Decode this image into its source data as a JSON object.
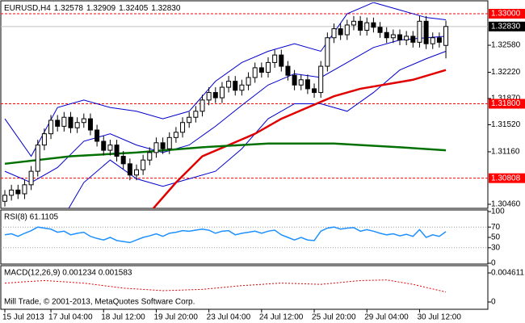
{
  "chart_data": [
    {
      "type": "candlestick",
      "title": "EURUSD,H4",
      "header_values": [
        "1.32578",
        "1.32909",
        "1.32405",
        "1.32830"
      ],
      "categories": [
        "15 Jul 2013",
        null,
        null,
        null,
        null,
        null,
        null,
        "17 Jul 04:00",
        null,
        null,
        null,
        null,
        null,
        null,
        null,
        "18 Jul 12:00",
        null,
        null,
        null,
        null,
        null,
        null,
        null,
        "19 Jul 20:00",
        null,
        null,
        null,
        null,
        null,
        null,
        null,
        "23 Jul 04:00",
        null,
        null,
        null,
        null,
        null,
        null,
        null,
        "24 Jul 12:00",
        null,
        null,
        null,
        null,
        null,
        null,
        null,
        "25 Jul 20:00",
        null,
        null,
        null,
        null,
        null,
        null,
        null,
        "29 Jul 04:00",
        null,
        null,
        null,
        null,
        null,
        null,
        null,
        "30 Jul 12:00",
        null,
        null,
        null,
        null
      ],
      "open": [
        1.305,
        1.3058,
        1.3065,
        1.306,
        1.3072,
        1.309,
        1.3125,
        1.314,
        1.3158,
        1.315,
        1.3162,
        1.3148,
        1.3155,
        1.316,
        1.3145,
        1.313,
        1.3118,
        1.3125,
        1.311,
        1.31,
        1.3085,
        1.3092,
        1.3105,
        1.3115,
        1.3128,
        1.312,
        1.3135,
        1.3142,
        1.3155,
        1.3162,
        1.317,
        1.3185,
        1.3195,
        1.3188,
        1.3202,
        1.321,
        1.3198,
        1.3205,
        1.3215,
        1.3228,
        1.3222,
        1.3235,
        1.3245,
        1.323,
        1.3218,
        1.3205,
        1.3212,
        1.32,
        1.3195,
        1.323,
        1.3268,
        1.328,
        1.3272,
        1.3285,
        1.329,
        1.3278,
        1.3288,
        1.3282,
        1.3275,
        1.3268,
        1.3272,
        1.3265,
        1.327,
        1.3262,
        1.329,
        1.326,
        1.3268,
        1.32578
      ],
      "high": [
        1.3065,
        1.3072,
        1.3072,
        1.3079,
        1.3097,
        1.3132,
        1.3147,
        1.3165,
        1.3165,
        1.3169,
        1.3169,
        1.3162,
        1.3167,
        1.3167,
        1.3152,
        1.3137,
        1.3132,
        1.3132,
        1.3117,
        1.3107,
        1.3099,
        1.3112,
        1.3122,
        1.3135,
        1.3135,
        1.3142,
        1.3149,
        1.3162,
        1.3169,
        1.3177,
        1.3192,
        1.3202,
        1.3202,
        1.3209,
        1.3217,
        1.3217,
        1.3212,
        1.3222,
        1.3235,
        1.3235,
        1.3242,
        1.3252,
        1.3252,
        1.3237,
        1.3225,
        1.3219,
        1.3219,
        1.3207,
        1.3237,
        1.3275,
        1.3287,
        1.3287,
        1.3292,
        1.3297,
        1.3297,
        1.3295,
        1.3295,
        1.3289,
        1.3282,
        1.3279,
        1.3279,
        1.3277,
        1.3277,
        1.3297,
        1.3297,
        1.3275,
        1.3275,
        1.32909
      ],
      "low": [
        1.3043,
        1.3051,
        1.3053,
        1.3053,
        1.3065,
        1.3083,
        1.3118,
        1.3133,
        1.3143,
        1.3143,
        1.3141,
        1.3141,
        1.3148,
        1.3138,
        1.3123,
        1.3111,
        1.3111,
        1.3103,
        1.3093,
        1.3078,
        1.3078,
        1.3085,
        1.3098,
        1.3108,
        1.3113,
        1.3113,
        1.3128,
        1.3135,
        1.3148,
        1.3155,
        1.3163,
        1.3178,
        1.3181,
        1.3181,
        1.3195,
        1.3191,
        1.3191,
        1.3198,
        1.3208,
        1.3215,
        1.3215,
        1.3228,
        1.3223,
        1.3211,
        1.3198,
        1.3198,
        1.3193,
        1.3188,
        1.3188,
        1.3223,
        1.3261,
        1.3265,
        1.3265,
        1.3278,
        1.3271,
        1.3271,
        1.3275,
        1.3268,
        1.3261,
        1.3261,
        1.3258,
        1.3258,
        1.3255,
        1.3255,
        1.3253,
        1.3253,
        1.3255,
        1.32405
      ],
      "close": [
        1.3058,
        1.3065,
        1.306,
        1.3072,
        1.309,
        1.3125,
        1.314,
        1.3158,
        1.315,
        1.3162,
        1.3148,
        1.3155,
        1.316,
        1.3145,
        1.313,
        1.3118,
        1.3125,
        1.311,
        1.31,
        1.3085,
        1.3092,
        1.3105,
        1.3115,
        1.3128,
        1.312,
        1.3135,
        1.3142,
        1.3155,
        1.3162,
        1.317,
        1.3185,
        1.3195,
        1.3188,
        1.3202,
        1.321,
        1.3198,
        1.3205,
        1.3215,
        1.3228,
        1.3222,
        1.3235,
        1.3245,
        1.323,
        1.3218,
        1.3205,
        1.3212,
        1.32,
        1.3195,
        1.323,
        1.3268,
        1.328,
        1.3272,
        1.3285,
        1.329,
        1.3278,
        1.3288,
        1.3282,
        1.3275,
        1.3268,
        1.3272,
        1.3265,
        1.327,
        1.3262,
        1.329,
        1.326,
        1.3268,
        1.3262,
        1.3283
      ],
      "ylim": [
        1.30406,
        1.33151
      ],
      "yticks": [
        {
          "value": 1.3258,
          "label": "1.32580"
        },
        {
          "value": 1.3222,
          "label": "1.32220"
        },
        {
          "value": 1.3187,
          "label": "1.31870"
        },
        {
          "value": 1.3152,
          "label": "1.31520"
        },
        {
          "value": 1.3116,
          "label": "1.31160"
        },
        {
          "value": 1.3046,
          "label": "1.30460"
        }
      ],
      "levels": [
        {
          "value": 1.33,
          "label": "1.33000"
        },
        {
          "value": 1.318,
          "label": "1.31800"
        },
        {
          "value": 1.30808,
          "label": "1.30808"
        }
      ],
      "level_color": "#ff0000",
      "current": {
        "value": 1.3283,
        "label": "1.32830"
      },
      "bands": {
        "color": "#0000cd",
        "x": [
          0,
          4,
          8,
          12,
          16,
          20,
          24,
          28,
          32,
          36,
          40,
          44,
          48,
          52,
          56,
          60,
          64,
          67
        ],
        "upper": [
          1.316,
          1.311,
          1.3175,
          1.3185,
          1.3175,
          1.317,
          1.316,
          1.317,
          1.321,
          1.3235,
          1.325,
          1.326,
          1.325,
          1.33,
          1.3315,
          1.3305,
          1.3295,
          1.3292
        ],
        "middle": [
          1.309,
          1.3075,
          1.3095,
          1.313,
          1.314,
          1.3125,
          1.3115,
          1.3125,
          1.315,
          1.3178,
          1.3205,
          1.322,
          1.3215,
          1.3235,
          1.3255,
          1.3265,
          1.3268,
          1.327
        ],
        "lower": [
          1.303,
          1.304,
          1.3015,
          1.3075,
          1.3105,
          1.308,
          1.307,
          1.308,
          1.309,
          1.312,
          1.316,
          1.318,
          1.318,
          1.317,
          1.3195,
          1.3225,
          1.324,
          1.325
        ]
      },
      "ma_lines": [
        {
          "color": "#e00000",
          "x": [
            22,
            26,
            30,
            34,
            38,
            42,
            46,
            50,
            54,
            58,
            62,
            67
          ],
          "values": [
            1.3035,
            1.3075,
            1.311,
            1.3125,
            1.314,
            1.316,
            1.3175,
            1.319,
            1.32,
            1.3206,
            1.3212,
            1.3225
          ]
        },
        {
          "color": "#007000",
          "x": [
            0,
            10,
            20,
            30,
            40,
            50,
            60,
            67
          ],
          "values": [
            1.31,
            1.311,
            1.3115,
            1.3122,
            1.3127,
            1.3127,
            1.3122,
            1.3118
          ]
        }
      ]
    },
    {
      "type": "line",
      "title": "RSI(8) 61.1105",
      "color": "#1e90ff",
      "values": [
        55,
        57,
        52,
        58,
        63,
        70,
        68,
        66,
        60,
        62,
        55,
        58,
        60,
        52,
        48,
        45,
        50,
        44,
        42,
        40,
        45,
        50,
        53,
        57,
        52,
        58,
        60,
        63,
        62,
        64,
        66,
        64,
        58,
        62,
        63,
        55,
        58,
        60,
        62,
        58,
        62,
        64,
        55,
        50,
        45,
        50,
        45,
        44,
        62,
        68,
        70,
        66,
        68,
        69,
        62,
        65,
        62,
        58,
        55,
        57,
        53,
        56,
        52,
        65,
        50,
        55,
        52,
        61.1105
      ],
      "ylim": [
        0,
        100
      ],
      "yticks": [
        0,
        30,
        50,
        70,
        100
      ],
      "levels": [
        30,
        70
      ]
    },
    {
      "type": "line",
      "title": "MACD(12,26,9) 0.001234 0.001583",
      "color": "#e00000",
      "dashed": true,
      "x": [
        0,
        6,
        12,
        18,
        24,
        30,
        36,
        42,
        48,
        54,
        58,
        62,
        67
      ],
      "values": [
        0.003,
        0.0034,
        0.003,
        0.0022,
        0.0018,
        0.002,
        0.0026,
        0.003,
        0.0028,
        0.0034,
        0.0035,
        0.0028,
        0.001583
      ],
      "ylim": [
        -0.001025,
        0.005636
      ],
      "yticks": [
        0,
        0.004611
      ],
      "levels": []
    }
  ],
  "footer": "Mill Trade, © 2001-2013, MetaQuotes Software Corp."
}
